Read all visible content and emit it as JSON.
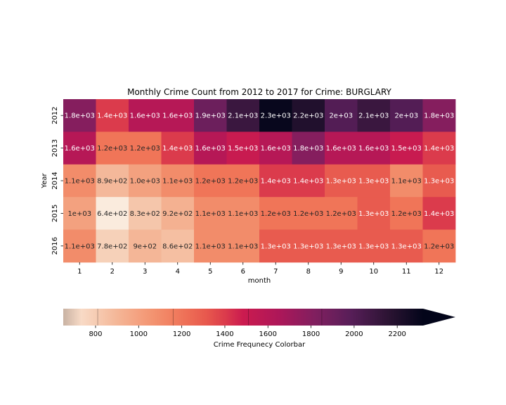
{
  "chart_data": {
    "type": "heatmap",
    "title": "Monthly Crime Count from 2012 to 2017 for Crime: BURGLARY",
    "xlabel": "month",
    "ylabel": "Year",
    "x_categories": [
      "1",
      "2",
      "3",
      "4",
      "5",
      "6",
      "7",
      "8",
      "9",
      "10",
      "11",
      "12"
    ],
    "y_categories": [
      "2012",
      "2013",
      "2014",
      "2015",
      "2016"
    ],
    "values": [
      [
        1800,
        1400,
        1600,
        1600,
        1900,
        2100,
        2300,
        2200,
        2000,
        2100,
        2000,
        1800
      ],
      [
        1600,
        1200,
        1200,
        1400,
        1600,
        1500,
        1600,
        1800,
        1600,
        1600,
        1500,
        1400
      ],
      [
        1100,
        890,
        1000,
        1100,
        1200,
        1200,
        1400,
        1400,
        1300,
        1300,
        1100,
        1300
      ],
      [
        1000,
        640,
        830,
        920,
        1100,
        1100,
        1200,
        1200,
        1200,
        1300,
        1200,
        1400
      ],
      [
        1100,
        780,
        900,
        860,
        1100,
        1100,
        1300,
        1300,
        1300,
        1300,
        1300,
        1200
      ]
    ],
    "cell_labels": [
      [
        "1.8e+03",
        "1.4e+03",
        "1.6e+03",
        "1.6e+03",
        "1.9e+03",
        "2.1e+03",
        "2.3e+03",
        "2.2e+03",
        "2e+03",
        "2.1e+03",
        "2e+03",
        "1.8e+03"
      ],
      [
        "1.6e+03",
        "1.2e+03",
        "1.2e+03",
        "1.4e+03",
        "1.6e+03",
        "1.5e+03",
        "1.6e+03",
        "1.8e+03",
        "1.6e+03",
        "1.6e+03",
        "1.5e+03",
        "1.4e+03"
      ],
      [
        "1.1e+03",
        "8.9e+02",
        "1.0e+03",
        "1.1e+03",
        "1.2e+03",
        "1.2e+03",
        "1.4e+03",
        "1.4e+03",
        "1.3e+03",
        "1.3e+03",
        "1.1e+03",
        "1.3e+03"
      ],
      [
        "1e+03",
        "6.4e+02",
        "8.3e+02",
        "9.2e+02",
        "1.1e+03",
        "1.1e+03",
        "1.2e+03",
        "1.2e+03",
        "1.2e+03",
        "1.3e+03",
        "1.2e+03",
        "1.4e+03"
      ],
      [
        "1.1e+03",
        "7.8e+02",
        "9e+02",
        "8.6e+02",
        "1.1e+03",
        "1.1e+03",
        "1.3e+03",
        "1.3e+03",
        "1.3e+03",
        "1.3e+03",
        "1.3e+03",
        "1.2e+03"
      ]
    ],
    "colorbar": {
      "label": "Crime Frequnecy Colorbar",
      "orientation": "horizontal",
      "extend": "max",
      "range": [
        650,
        2320
      ],
      "ticks": [
        800,
        1000,
        1200,
        1400,
        1600,
        1800,
        2000,
        2200
      ],
      "boundaries": [
        810,
        1160,
        1510,
        1850
      ],
      "low_color": "#c8b2a3",
      "high_color": "#03051a"
    },
    "colormap": "rocket_r",
    "grid": false
  }
}
